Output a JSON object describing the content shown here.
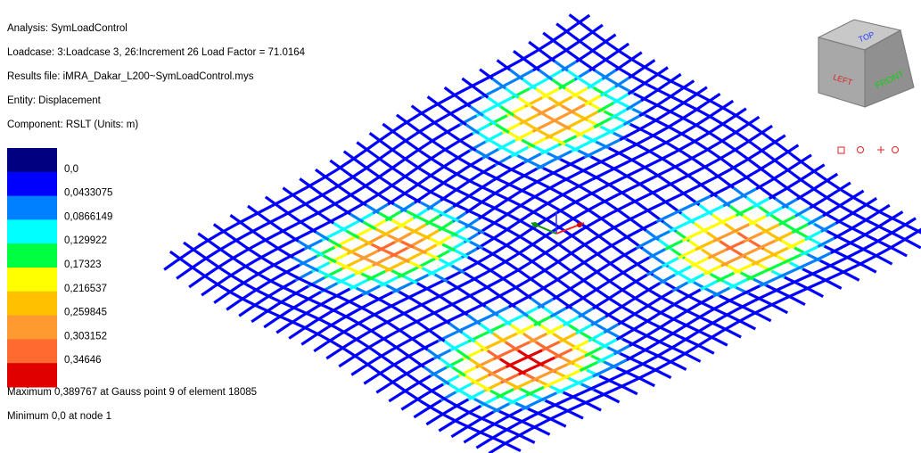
{
  "info": {
    "analysis": "Analysis: SymLoadControl",
    "loadcase": "Loadcase: 3:Loadcase 3, 26:Increment 26 Load Factor = 71.0164",
    "results_file": "Results file: iMRA_Dakar_L200~SymLoadControl.mys",
    "entity": "Entity: Displacement",
    "component": "Component: RSLT (Units: m)"
  },
  "legend": {
    "colors": [
      "#000080",
      "#0000ff",
      "#0080ff",
      "#00ffff",
      "#00ff40",
      "#ffff00",
      "#ffc000",
      "#ff9a30",
      "#ff6a30",
      "#e00000"
    ],
    "labels": [
      "0,0",
      "0,0433075",
      "0,0866149",
      "0,129922",
      "0,17323",
      "0,216537",
      "0,259845",
      "0,303152",
      "0,34646"
    ]
  },
  "summary": {
    "maximum": "Maximum 0,389767 at Gauss point 9 of element 18085",
    "minimum": "Minimum 0,0 at node 1"
  },
  "view_cube": {
    "top": "TOP",
    "left": "LEFT",
    "front": "FRONT"
  }
}
